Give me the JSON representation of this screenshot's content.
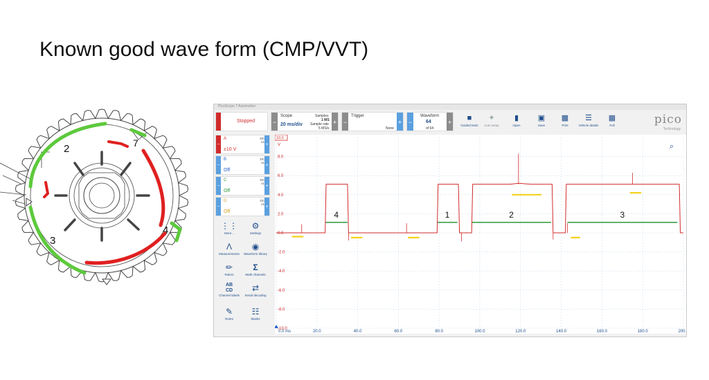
{
  "slide": {
    "title": "Known good wave form (CMP/VVT)"
  },
  "sprocket": {
    "labels": [
      "2",
      "7",
      "3",
      "4"
    ]
  },
  "app": {
    "window_title": "PicoScope 7 Automotive",
    "status": "Stopped",
    "scope": {
      "label": "Scope",
      "timebase": "20 ms/div",
      "samples_label": "Samples",
      "samples_value": "1 MS",
      "rate_label": "Sample rate",
      "rate_value": "5 MS/s"
    },
    "trigger": {
      "label": "Trigger",
      "mode": "None"
    },
    "waveform": {
      "label": "Waveform",
      "index": "64",
      "of": "of 64"
    },
    "toolbar": [
      {
        "label": "Guided tests",
        "icon": "car-icon"
      },
      {
        "label": "Auto setup",
        "icon": "magic-wand-icon"
      },
      {
        "label": "Open",
        "icon": "folder-icon"
      },
      {
        "label": "Save",
        "icon": "save-icon"
      },
      {
        "label": "Print",
        "icon": "printer-icon"
      },
      {
        "label": "Vehicle details",
        "icon": "clipboard-icon"
      },
      {
        "label": "Full",
        "icon": "fullscreen-icon"
      }
    ],
    "logo": {
      "name": "pico",
      "sub": "Technology"
    },
    "channels": [
      {
        "name": "A",
        "coupling": "DC",
        "probe": "x1",
        "range": "±10 V",
        "color": "#d12b2b"
      },
      {
        "name": "B",
        "coupling": "DC",
        "probe": "x1",
        "range": "Off",
        "color": "#2a62c9"
      },
      {
        "name": "C",
        "coupling": "DC",
        "probe": "x1",
        "range": "Off",
        "color": "#2a9a3a"
      },
      {
        "name": "D",
        "coupling": "DC",
        "probe": "x1",
        "range": "Off",
        "color": "#d49a1a"
      }
    ],
    "tools": [
      {
        "label": "More...",
        "icon": "grid-dots-icon"
      },
      {
        "label": "Settings",
        "icon": "gear-icon"
      },
      {
        "label": "Measurements",
        "icon": "compass-icon"
      },
      {
        "label": "Waveform library",
        "icon": "cube-icon"
      },
      {
        "label": "Rulers",
        "icon": "ruler-icon"
      },
      {
        "label": "Math channels",
        "icon": "sigma-icon"
      },
      {
        "label": "Channel labels",
        "icon": "abcd-icon"
      },
      {
        "label": "Serial decoding",
        "icon": "serial-icon"
      },
      {
        "label": "Notes",
        "icon": "note-icon"
      },
      {
        "label": "Masks",
        "icon": "mask-icon"
      }
    ]
  },
  "chart_data": {
    "type": "line",
    "axis_unit_y": "V",
    "y_range_label": "10.0",
    "y_ticks": [
      "8.0",
      "6.0",
      "4.0",
      "2.0",
      "0.0",
      "-2.0",
      "-4.0",
      "-6.0",
      "-8.0",
      "-10.0"
    ],
    "y_tick_values": [
      8,
      6,
      4,
      2,
      0,
      -2,
      -4,
      -6,
      -8,
      -10
    ],
    "x_ticks": [
      "0.0 ms",
      "20.0",
      "40.0",
      "60.0",
      "80.0",
      "100.0",
      "120.0",
      "140.0",
      "160.0",
      "180.0",
      "200.0"
    ],
    "x_tick_values": [
      0,
      20,
      40,
      60,
      80,
      100,
      120,
      140,
      160,
      180,
      200
    ],
    "xlim": [
      0,
      200
    ],
    "ylim": [
      -10,
      10
    ],
    "grid": true,
    "series": [
      {
        "color": "#d12b2b",
        "x": [
          0,
          4,
          12.5,
          24,
          24.5,
          35,
          35.5,
          79,
          79.5,
          89.5,
          90,
          96,
          96.5,
          115,
          119,
          125,
          135.5,
          136,
          142,
          142.5,
          175,
          198,
          198.5,
          200
        ],
        "y": [
          0,
          0,
          0,
          0,
          5.1,
          5.1,
          0,
          0,
          5.1,
          5.1,
          0,
          0,
          5.1,
          5.1,
          5.2,
          5.1,
          5.1,
          0,
          0,
          5.1,
          5.1,
          5.1,
          0,
          0
        ]
      }
    ],
    "segments": [
      {
        "label": "4",
        "x0": 24,
        "x1": 35,
        "y": 1.1
      },
      {
        "label": "1",
        "x0": 79,
        "x1": 89,
        "y": 1.1
      },
      {
        "label": "2",
        "x0": 96,
        "x1": 135,
        "y": 1.1
      },
      {
        "label": "3",
        "x0": 143,
        "x1": 197,
        "y": 1.1
      }
    ],
    "highlights": [
      {
        "x0": 8,
        "x1": 13,
        "y": -0.4
      },
      {
        "x0": 37,
        "x1": 42,
        "y": -0.5
      },
      {
        "x0": 65,
        "x1": 70,
        "y": -0.5
      },
      {
        "x0": 116,
        "x1": 130,
        "y": 4.0
      },
      {
        "x0": 145,
        "x1": 149,
        "y": -0.5
      },
      {
        "x0": 174,
        "x1": 179,
        "y": 4.2
      }
    ]
  }
}
